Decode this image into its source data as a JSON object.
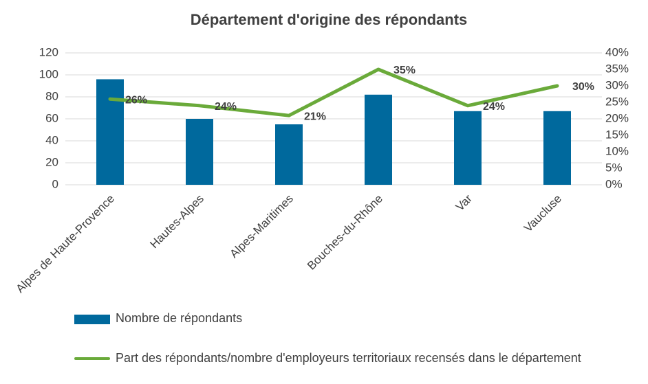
{
  "chart_data": {
    "type": "bar",
    "title": "Département d'origine des répondants",
    "categories": [
      "Alpes de Haute-Provence",
      "Hautes-Alpes",
      "Alpes-Maritimes",
      "Bouches-du-Rhône",
      "Var",
      "Vaucluse"
    ],
    "series": [
      {
        "name": "Nombre de répondants",
        "color": "#00699d",
        "type": "bar",
        "values": [
          96,
          60,
          55,
          82,
          67,
          67
        ]
      },
      {
        "name": "Part des répondants/nombre d'employeurs territoriaux recensés dans le département",
        "color": "#6aaa3a",
        "type": "line",
        "axis": "y2",
        "values": [
          26,
          24,
          21,
          35,
          24,
          30
        ],
        "value_labels": [
          "26%",
          "24%",
          "21%",
          "35%",
          "24%",
          "30%"
        ]
      }
    ],
    "ylim": [
      0,
      120
    ],
    "yticks": [
      0,
      20,
      40,
      60,
      80,
      100,
      120
    ],
    "y2lim": [
      0,
      40
    ],
    "y2ticks": [
      {
        "value": 0,
        "label": "0%"
      },
      {
        "value": 5,
        "label": "5%"
      },
      {
        "value": 10,
        "label": "10%"
      },
      {
        "value": 15,
        "label": "15%"
      },
      {
        "value": 20,
        "label": "20%"
      },
      {
        "value": 25,
        "label": "25%"
      },
      {
        "value": 30,
        "label": "30%"
      },
      {
        "value": 35,
        "label": "35%"
      },
      {
        "value": 40,
        "label": "40%"
      }
    ],
    "grid": true,
    "legend": "bottom"
  }
}
